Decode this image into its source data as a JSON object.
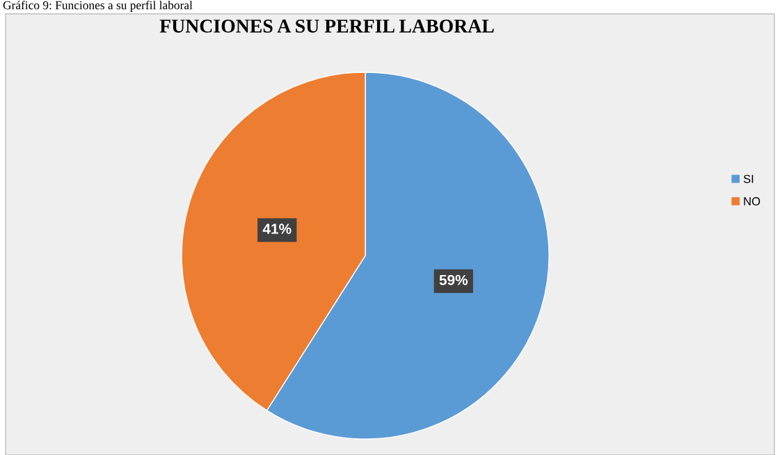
{
  "chart_data": {
    "type": "pie",
    "title": "FUNCIONES A SU PERFIL LABORAL",
    "annotations": [
      "Gráfico 9: Funciones a su perfil laboral"
    ],
    "categories": [
      "SI",
      "NO"
    ],
    "values": [
      59,
      41
    ],
    "colors": [
      "#5b9bd5",
      "#ed7d31"
    ],
    "value_labels": [
      "59%",
      "41%"
    ],
    "legend": "right"
  }
}
